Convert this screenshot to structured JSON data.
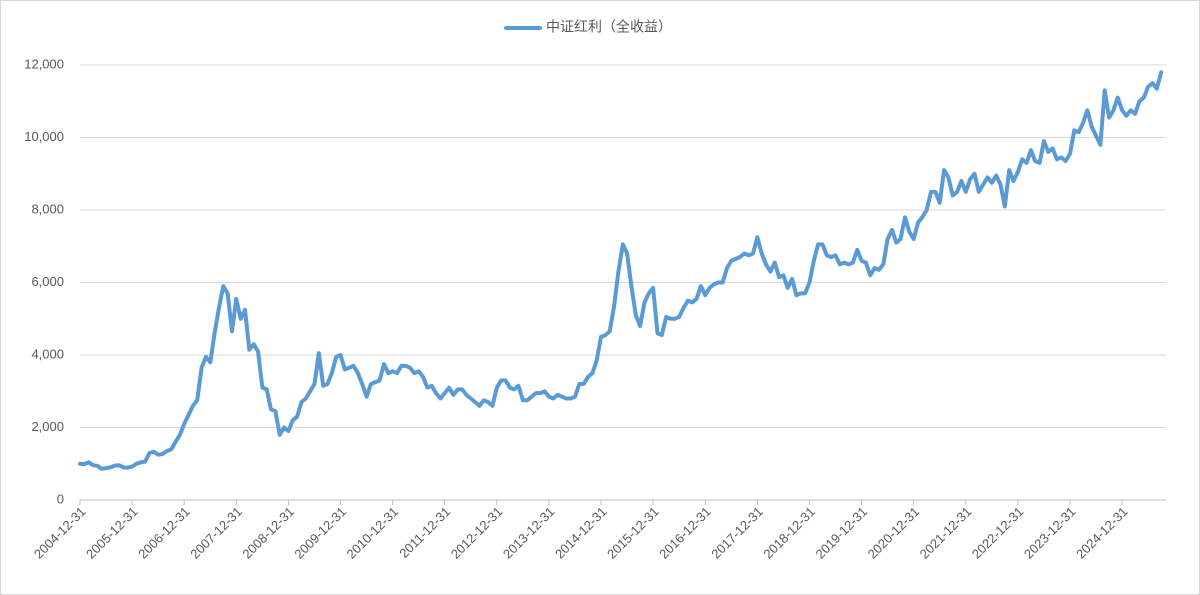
{
  "chart_data": {
    "type": "line",
    "categories": [
      "2004-12-31",
      null,
      null,
      null,
      null,
      null,
      null,
      null,
      null,
      null,
      null,
      null,
      "2005-12-31",
      null,
      null,
      null,
      null,
      null,
      null,
      null,
      null,
      null,
      null,
      null,
      "2006-12-31",
      null,
      null,
      null,
      null,
      null,
      null,
      null,
      null,
      null,
      null,
      null,
      "2007-12-31",
      null,
      null,
      null,
      null,
      null,
      null,
      null,
      null,
      null,
      null,
      null,
      "2008-12-31",
      null,
      null,
      null,
      null,
      null,
      null,
      null,
      null,
      null,
      null,
      null,
      "2009-12-31",
      null,
      null,
      null,
      null,
      null,
      null,
      null,
      null,
      null,
      null,
      null,
      "2010-12-31",
      null,
      null,
      null,
      null,
      null,
      null,
      null,
      null,
      null,
      null,
      null,
      "2011-12-31",
      null,
      null,
      null,
      null,
      null,
      null,
      null,
      null,
      null,
      null,
      null,
      "2012-12-31",
      null,
      null,
      null,
      null,
      null,
      null,
      null,
      null,
      null,
      null,
      null,
      "2013-12-31",
      null,
      null,
      null,
      null,
      null,
      null,
      null,
      null,
      null,
      null,
      null,
      "2014-12-31",
      null,
      null,
      null,
      null,
      null,
      null,
      null,
      null,
      null,
      null,
      null,
      "2015-12-31",
      null,
      null,
      null,
      null,
      null,
      null,
      null,
      null,
      null,
      null,
      null,
      "2016-12-31",
      null,
      null,
      null,
      null,
      null,
      null,
      null,
      null,
      null,
      null,
      null,
      "2017-12-31",
      null,
      null,
      null,
      null,
      null,
      null,
      null,
      null,
      null,
      null,
      null,
      "2018-12-31",
      null,
      null,
      null,
      null,
      null,
      null,
      null,
      null,
      null,
      null,
      null,
      "2019-12-31",
      null,
      null,
      null,
      null,
      null,
      null,
      null,
      null,
      null,
      null,
      null,
      "2020-12-31",
      null,
      null,
      null,
      null,
      null,
      null,
      null,
      null,
      null,
      null,
      null,
      "2021-12-31",
      null,
      null,
      null,
      null,
      null,
      null,
      null,
      null,
      null,
      null,
      null,
      "2022-12-31",
      null,
      null,
      null,
      null,
      null,
      null,
      null,
      null,
      null,
      null,
      null,
      "2023-12-31",
      null,
      null,
      null,
      null,
      null,
      null,
      null,
      null,
      null,
      null,
      null,
      "2024-12-31",
      null,
      null,
      null,
      null,
      null,
      null,
      null,
      null,
      null
    ],
    "series": [
      {
        "name": "中证红利（全收益）",
        "color": "#5b9bd5",
        "values": [
          1000,
          990,
          1040,
          960,
          940,
          860,
          880,
          900,
          950,
          960,
          900,
          890,
          920,
          1000,
          1040,
          1060,
          1300,
          1330,
          1250,
          1270,
          1350,
          1400,
          1600,
          1800,
          2100,
          2350,
          2600,
          2750,
          3650,
          3950,
          3800,
          4600,
          5300,
          5900,
          5700,
          4650,
          5550,
          5000,
          5250,
          4150,
          4300,
          4100,
          3100,
          3050,
          2500,
          2450,
          1800,
          2000,
          1900,
          2200,
          2300,
          2700,
          2800,
          3000,
          3200,
          4050,
          3150,
          3200,
          3500,
          3950,
          4000,
          3600,
          3650,
          3700,
          3500,
          3200,
          2850,
          3200,
          3250,
          3300,
          3750,
          3500,
          3550,
          3500,
          3700,
          3700,
          3650,
          3500,
          3550,
          3400,
          3100,
          3150,
          2950,
          2800,
          2950,
          3100,
          2900,
          3050,
          3050,
          2900,
          2800,
          2700,
          2600,
          2750,
          2700,
          2600,
          3100,
          3300,
          3300,
          3100,
          3050,
          3150,
          2750,
          2750,
          2850,
          2950,
          2950,
          3000,
          2850,
          2800,
          2900,
          2850,
          2800,
          2800,
          2850,
          3200,
          3200,
          3400,
          3500,
          3850,
          4500,
          4550,
          4650,
          5350,
          6300,
          7050,
          6800,
          5900,
          5100,
          4800,
          5450,
          5700,
          5850,
          4600,
          4550,
          5050,
          5000,
          5000,
          5050,
          5300,
          5500,
          5450,
          5550,
          5900,
          5650,
          5850,
          5950,
          6000,
          6000,
          6400,
          6600,
          6650,
          6700,
          6800,
          6750,
          6800,
          7250,
          6800,
          6500,
          6300,
          6550,
          6150,
          6200,
          5850,
          6100,
          5650,
          5700,
          5700,
          6000,
          6600,
          7050,
          7050,
          6750,
          6700,
          6750,
          6500,
          6550,
          6500,
          6550,
          6900,
          6600,
          6550,
          6200,
          6400,
          6350,
          6500,
          7200,
          7450,
          7100,
          7200,
          7800,
          7400,
          7200,
          7650,
          7800,
          8000,
          8500,
          8500,
          8200,
          9100,
          8900,
          8400,
          8500,
          8800,
          8500,
          8850,
          9000,
          8500,
          8700,
          8900,
          8750,
          8950,
          8700,
          8100,
          9100,
          8800,
          9050,
          9400,
          9300,
          9650,
          9350,
          9300,
          9900,
          9600,
          9700,
          9400,
          9450,
          9350,
          9550,
          10200,
          10150,
          10400,
          10750,
          10300,
          10050,
          9800,
          11300,
          10550,
          10750,
          11100,
          10750,
          10600,
          10750,
          10650,
          11000,
          11100,
          11400,
          11500,
          11350,
          11800
        ]
      }
    ],
    "ylim": [
      0,
      12000
    ],
    "yticks": [
      0,
      {
        "value": 2000,
        "label": "2,000"
      },
      {
        "value": 4000,
        "label": "4,000"
      },
      {
        "value": 6000,
        "label": "6,000"
      },
      {
        "value": 8000,
        "label": "8,000"
      },
      {
        "value": 10000,
        "label": "10,000"
      },
      {
        "value": 12000,
        "label": "12,000"
      }
    ],
    "grid": true,
    "legend": "top"
  }
}
